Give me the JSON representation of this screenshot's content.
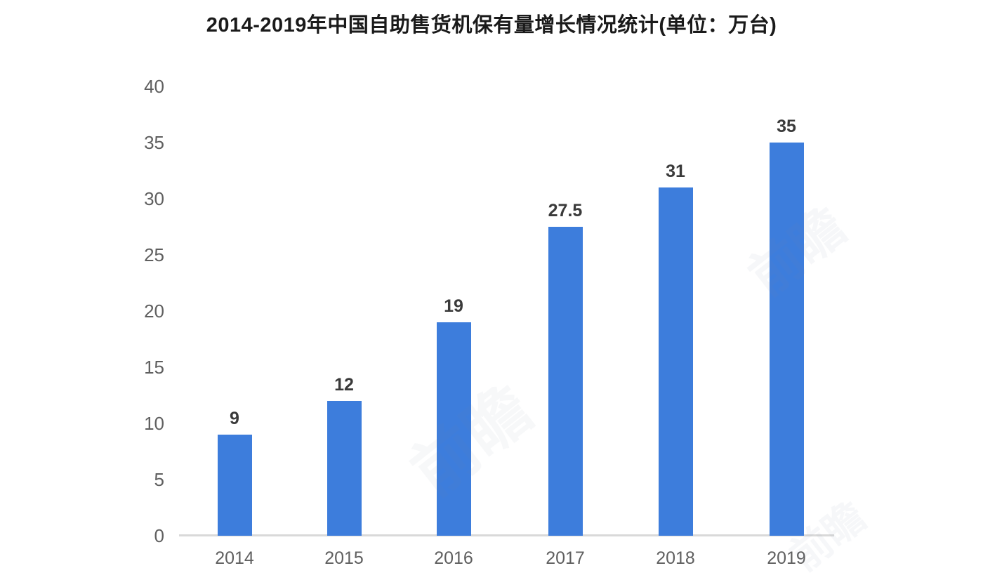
{
  "chart_data": {
    "type": "bar",
    "title": "2014-2019年中国自助售货机保有量增长情况统计(单位：万台)",
    "categories": [
      "2014",
      "2015",
      "2016",
      "2017",
      "2018",
      "2019"
    ],
    "values": [
      9,
      12,
      19,
      27.5,
      31,
      35
    ],
    "value_labels": [
      "9",
      "12",
      "19",
      "27.5",
      "31",
      "35"
    ],
    "xlabel": "",
    "ylabel": "",
    "ylim": [
      0,
      40
    ],
    "yticks": [
      0,
      5,
      10,
      15,
      20,
      25,
      30,
      35,
      40
    ],
    "grid": false,
    "legend": "none",
    "bar_color": "#3d7ddc",
    "axis_line_color": "#d9d9d9",
    "tick_label_color": "#5f5f5f",
    "value_label_color": "#3a3a3a",
    "title_color": "#1a1a1a"
  },
  "watermarks": [
    "前瞻",
    "前瞻",
    "前瞻"
  ]
}
